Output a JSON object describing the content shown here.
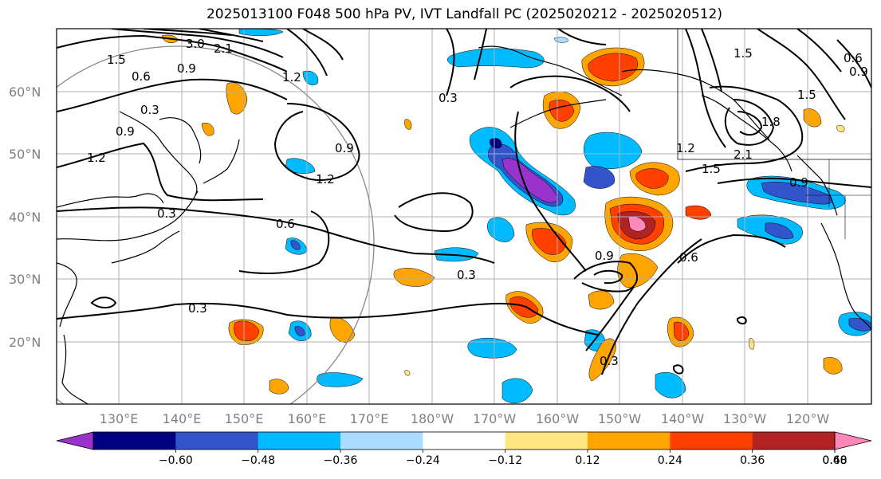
{
  "title": "2025013100 F048 500 hPa PV, IVT Landfall PC (2025020212 - 2025020512)",
  "lat_labels": [
    "60°N",
    "50°N",
    "40°N",
    "30°N",
    "20°N"
  ],
  "lon_labels": [
    "130°E",
    "140°E",
    "150°E",
    "160°E",
    "170°E",
    "180°W",
    "170°W",
    "160°W",
    "150°W",
    "140°W",
    "130°W",
    "120°W"
  ],
  "colorbar": {
    "tick_labels": [
      "−0.60",
      "−0.48",
      "−0.36",
      "−0.24",
      "−0.12",
      "0.12",
      "0.24",
      "0.36",
      "0.48",
      "0.60"
    ],
    "colors": [
      "#9933cc",
      "#000080",
      "#3355cc",
      "#00bbff",
      "#aaddff",
      "#ffffff",
      "#ffe680",
      "#ffa500",
      "#ff4000",
      "#b22222",
      "#ff88bb"
    ]
  },
  "contour_labels": [
    "3.0",
    "2.1",
    "1.5",
    "0.9",
    "0.6",
    "1.2",
    "0.3",
    "0.9",
    "1.2",
    "0.9",
    "0.3",
    "0.6",
    "0.3",
    "0.3",
    "0.9",
    "0.6",
    "0.3",
    "1.5",
    "2.1",
    "1.2",
    "1.8",
    "1.5",
    "0.9",
    "1.5",
    "0.6",
    "0.9",
    "1.2",
    "0.3"
  ]
}
